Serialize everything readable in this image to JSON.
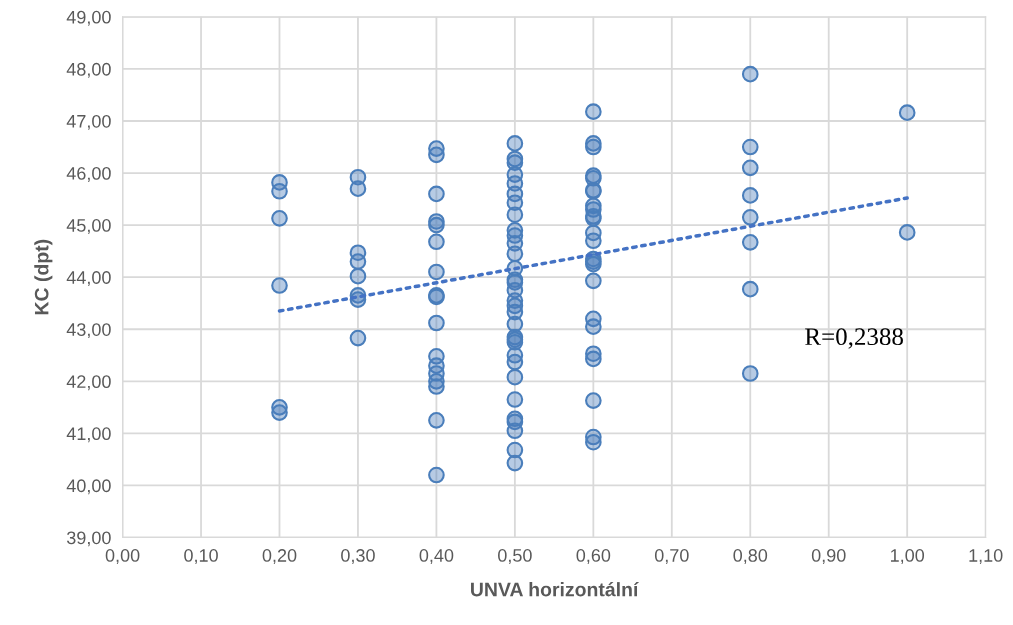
{
  "chart_data": {
    "type": "scatter",
    "xlabel": "UNVA horizontální",
    "ylabel": "KC (dpt)",
    "xlim": [
      0,
      1.1
    ],
    "ylim": [
      39,
      49
    ],
    "xticks": [
      {
        "value": 0,
        "label": "0,00"
      },
      {
        "value": 0.1,
        "label": "0,10"
      },
      {
        "value": 0.2,
        "label": "0,20"
      },
      {
        "value": 0.3,
        "label": "0,30"
      },
      {
        "value": 0.4,
        "label": "0,40"
      },
      {
        "value": 0.5,
        "label": "0,50"
      },
      {
        "value": 0.6,
        "label": "0,60"
      },
      {
        "value": 0.7,
        "label": "0,70"
      },
      {
        "value": 0.8,
        "label": "0,80"
      },
      {
        "value": 0.9,
        "label": "0,90"
      },
      {
        "value": 1.0,
        "label": "1,00"
      },
      {
        "value": 1.1,
        "label": "1,10"
      }
    ],
    "yticks": [
      {
        "value": 39,
        "label": "39,00"
      },
      {
        "value": 40,
        "label": "40,00"
      },
      {
        "value": 41,
        "label": "41,00"
      },
      {
        "value": 42,
        "label": "42,00"
      },
      {
        "value": 43,
        "label": "43,00"
      },
      {
        "value": 44,
        "label": "44,00"
      },
      {
        "value": 45,
        "label": "45,00"
      },
      {
        "value": 46,
        "label": "46,00"
      },
      {
        "value": 47,
        "label": "47,00"
      },
      {
        "value": 48,
        "label": "48,00"
      },
      {
        "value": 49,
        "label": "49,00"
      }
    ],
    "grid": true,
    "marker": "circle",
    "annotations": [
      "R=0,2388"
    ],
    "series": [
      {
        "color": "#4a7ebb",
        "x": [
          0.2,
          0.2,
          0.2,
          0.2,
          0.2,
          0.2,
          0.3,
          0.3,
          0.3,
          0.3,
          0.3,
          0.3,
          0.3,
          0.3,
          0.4,
          0.4,
          0.4,
          0.4,
          0.4,
          0.4,
          0.4,
          0.4,
          0.4,
          0.4,
          0.4,
          0.4,
          0.4,
          0.4,
          0.4,
          0.4,
          0.4,
          0.5,
          0.5,
          0.5,
          0.5,
          0.5,
          0.5,
          0.5,
          0.5,
          0.5,
          0.5,
          0.5,
          0.5,
          0.5,
          0.5,
          0.5,
          0.5,
          0.5,
          0.5,
          0.5,
          0.5,
          0.5,
          0.5,
          0.5,
          0.5,
          0.5,
          0.5,
          0.5,
          0.5,
          0.5,
          0.5,
          0.5,
          0.5,
          0.6,
          0.6,
          0.6,
          0.6,
          0.6,
          0.6,
          0.6,
          0.6,
          0.6,
          0.6,
          0.6,
          0.6,
          0.6,
          0.6,
          0.6,
          0.6,
          0.6,
          0.6,
          0.6,
          0.6,
          0.6,
          0.6,
          0.6,
          0.6,
          0.8,
          0.8,
          0.8,
          0.8,
          0.8,
          0.8,
          0.8,
          0.8,
          1.0,
          1.0
        ],
        "values": [
          45.82,
          45.65,
          45.13,
          43.84,
          41.5,
          41.4,
          45.92,
          45.7,
          44.47,
          44.3,
          44.02,
          43.65,
          43.57,
          42.83,
          46.47,
          46.35,
          45.6,
          45.07,
          45.0,
          44.68,
          44.1,
          43.65,
          43.62,
          43.12,
          42.48,
          42.3,
          42.15,
          42.0,
          41.9,
          41.25,
          40.2,
          46.57,
          46.27,
          46.2,
          45.97,
          45.8,
          45.6,
          45.43,
          45.2,
          44.9,
          44.8,
          44.65,
          44.45,
          44.17,
          43.95,
          43.9,
          43.75,
          43.55,
          43.45,
          43.33,
          43.1,
          42.85,
          42.8,
          42.75,
          42.5,
          42.37,
          42.08,
          41.65,
          41.28,
          41.22,
          41.05,
          40.68,
          40.43,
          47.18,
          46.57,
          46.5,
          45.95,
          45.9,
          45.67,
          45.65,
          45.37,
          45.3,
          45.17,
          45.13,
          44.85,
          44.7,
          44.35,
          44.3,
          44.25,
          43.93,
          43.2,
          43.05,
          42.53,
          42.43,
          41.63,
          40.93,
          40.83,
          47.9,
          46.5,
          46.1,
          45.57,
          45.15,
          44.67,
          43.77,
          42.15,
          47.16,
          44.86
        ]
      },
      {
        "type": "line",
        "color": "#4472c4",
        "line_style": "dotted",
        "marker": "none",
        "x": [
          0.2,
          1.0
        ],
        "values": [
          43.35,
          45.52
        ]
      }
    ]
  }
}
